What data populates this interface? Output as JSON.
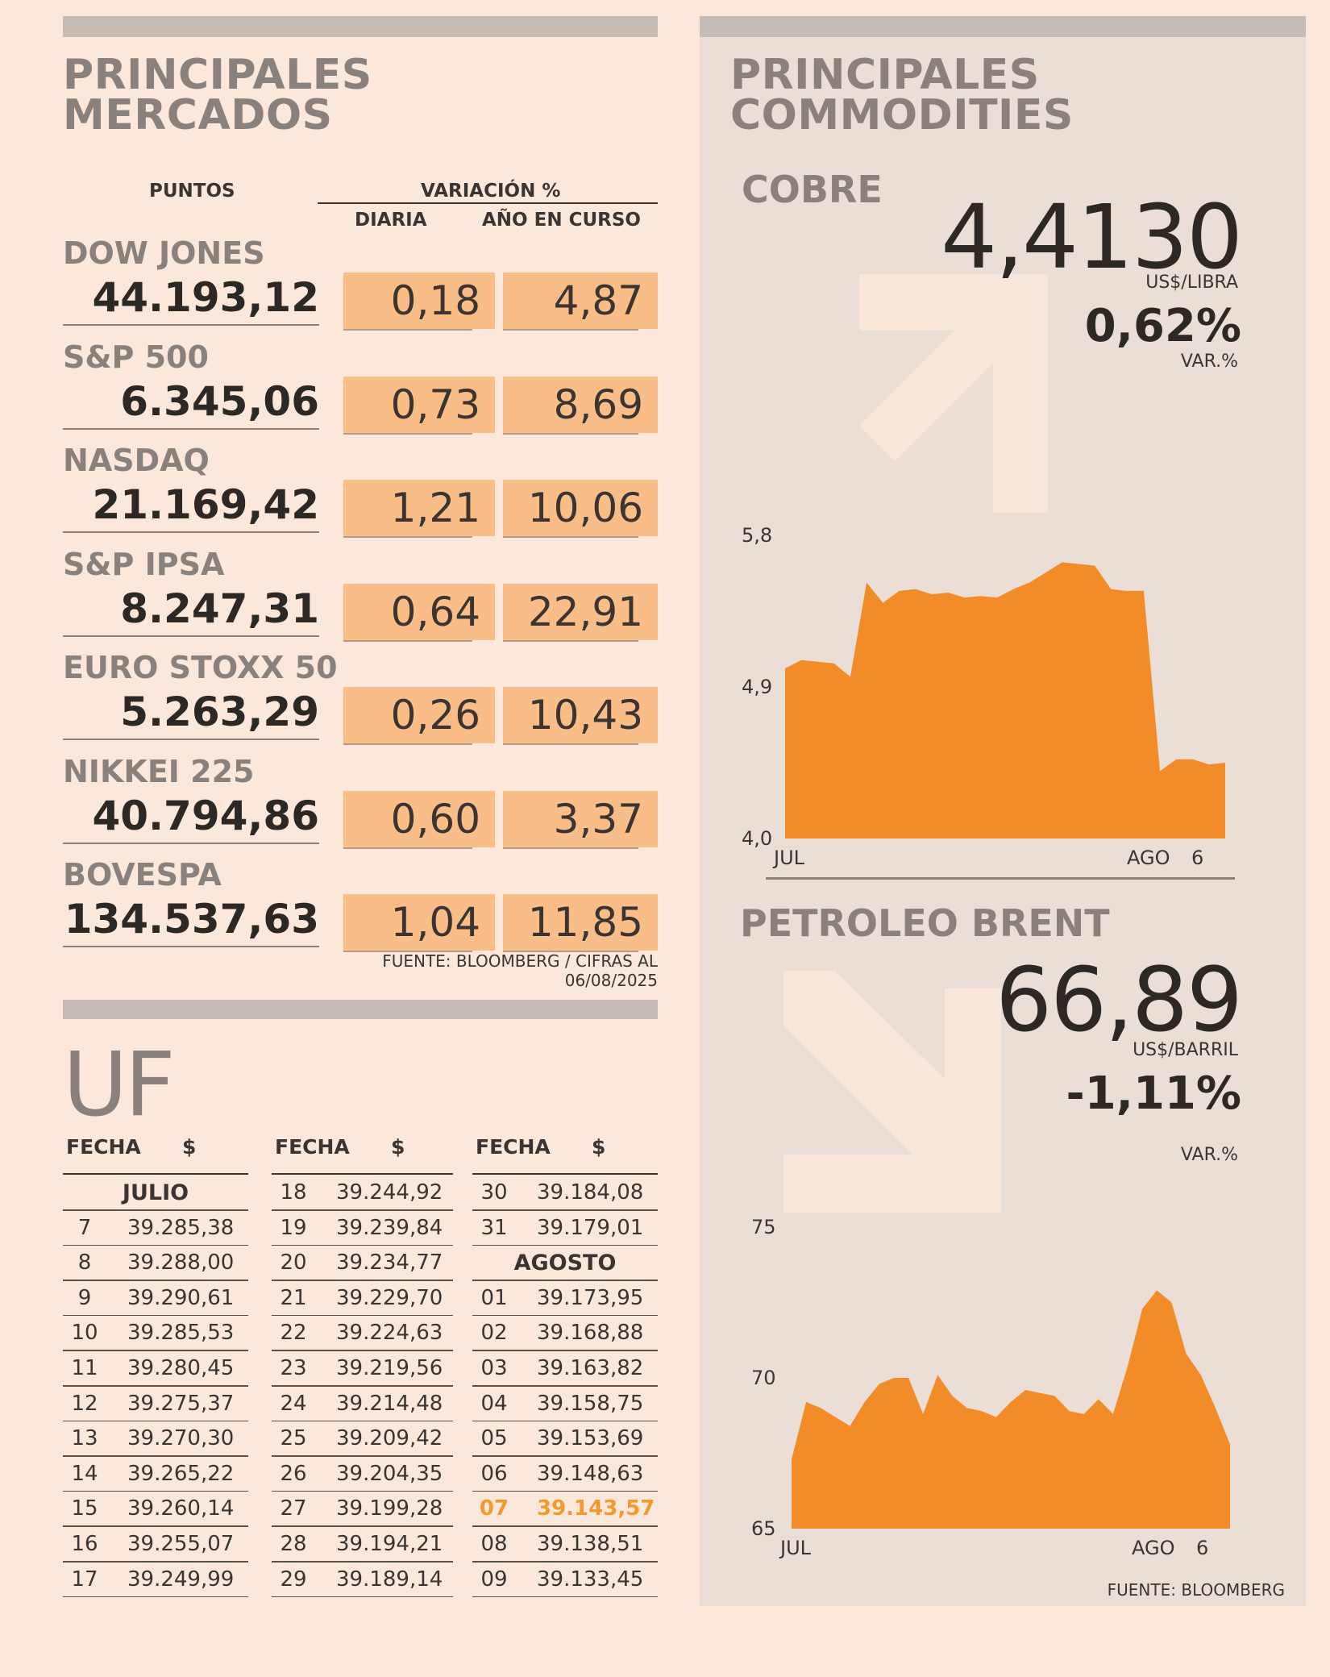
{
  "markets": {
    "title_line1": "PRINCIPALES",
    "title_line2": "MERCADOS",
    "col_points": "PUNTOS",
    "col_variation": "VARIACIÓN %",
    "col_daily": "DIARIA",
    "col_ytd": "AÑO EN CURSO",
    "source": "FUENTE: BLOOMBERG  / CIFRAS AL 06/08/2025",
    "rows": [
      {
        "name": "DOW JONES",
        "points": "44.193,12",
        "daily": "0,18",
        "ytd": "4,87"
      },
      {
        "name": "S&P 500",
        "points": "6.345,06",
        "daily": "0,73",
        "ytd": "8,69"
      },
      {
        "name": "NASDAQ",
        "points": "21.169,42",
        "daily": "1,21",
        "ytd": "10,06"
      },
      {
        "name": "S&P IPSA",
        "points": "8.247,31",
        "daily": "0,64",
        "ytd": "22,91"
      },
      {
        "name": "EURO STOXX 50",
        "points": "5.263,29",
        "daily": "0,26",
        "ytd": "10,43"
      },
      {
        "name": "NIKKEI 225",
        "points": "40.794,86",
        "daily": "0,60",
        "ytd": "3,37"
      },
      {
        "name": "BOVESPA",
        "points": "134.537,63",
        "daily": "1,04",
        "ytd": "11,85"
      }
    ]
  },
  "uf": {
    "title": "UF",
    "col_date": "FECHA",
    "col_value": "$",
    "month_july": "JULIO",
    "month_august": "AGOSTO",
    "col1": [
      {
        "d": "7",
        "v": "39.285,38"
      },
      {
        "d": "8",
        "v": "39.288,00"
      },
      {
        "d": "9",
        "v": "39.290,61"
      },
      {
        "d": "10",
        "v": "39.285,53"
      },
      {
        "d": "11",
        "v": "39.280,45"
      },
      {
        "d": "12",
        "v": "39.275,37"
      },
      {
        "d": "13",
        "v": "39.270,30"
      },
      {
        "d": "14",
        "v": "39.265,22"
      },
      {
        "d": "15",
        "v": "39.260,14"
      },
      {
        "d": "16",
        "v": "39.255,07"
      },
      {
        "d": "17",
        "v": "39.249,99"
      }
    ],
    "col2": [
      {
        "d": "18",
        "v": "39.244,92"
      },
      {
        "d": "19",
        "v": "39.239,84"
      },
      {
        "d": "20",
        "v": "39.234,77"
      },
      {
        "d": "21",
        "v": "39.229,70"
      },
      {
        "d": "22",
        "v": "39.224,63"
      },
      {
        "d": "23",
        "v": "39.219,56"
      },
      {
        "d": "24",
        "v": "39.214,48"
      },
      {
        "d": "25",
        "v": "39.209,42"
      },
      {
        "d": "26",
        "v": "39.204,35"
      },
      {
        "d": "27",
        "v": "39.199,28"
      },
      {
        "d": "28",
        "v": "39.194,21"
      },
      {
        "d": "29",
        "v": "39.189,14"
      }
    ],
    "col3a": [
      {
        "d": "30",
        "v": "39.184,08"
      },
      {
        "d": "31",
        "v": "39.179,01"
      }
    ],
    "col3b": [
      {
        "d": "01",
        "v": "39.173,95"
      },
      {
        "d": "02",
        "v": "39.168,88"
      },
      {
        "d": "03",
        "v": "39.163,82"
      },
      {
        "d": "04",
        "v": "39.158,75"
      },
      {
        "d": "05",
        "v": "39.153,69"
      },
      {
        "d": "06",
        "v": "39.148,63"
      },
      {
        "d": "07",
        "v": "39.143,57",
        "highlight": true
      },
      {
        "d": "08",
        "v": "39.138,51"
      },
      {
        "d": "09",
        "v": "39.133,45"
      }
    ]
  },
  "commodities": {
    "title_line1": "PRINCIPALES",
    "title_line2": "COMMODITIES",
    "source": "FUENTE: BLOOMBERG",
    "copper": {
      "name": "COBRE",
      "price": "4,4130",
      "unit": "US$/LIBRA",
      "change": "0,62%",
      "change_label": "VAR.%",
      "trend": "up"
    },
    "brent": {
      "name": "PETROLEO BRENT",
      "price": "66,89",
      "unit": "US$/BARRIL",
      "change": "-1,11%",
      "change_label": "VAR.%",
      "trend": "down"
    }
  },
  "accent_color": "#f28c28",
  "cell_color": "#f9bd87",
  "chart_data": [
    {
      "type": "area",
      "series": [
        {
          "values": [
            5.01,
            5.06,
            5.05,
            5.04,
            4.96,
            5.52,
            5.4,
            5.47,
            5.48,
            5.45,
            5.46,
            5.43,
            5.44,
            5.43,
            5.48,
            5.52,
            5.58,
            5.64,
            5.63,
            5.62,
            5.48,
            5.47,
            5.47,
            4.4,
            4.47,
            4.47,
            4.44,
            4.45
          ]
        }
      ],
      "x_tick_labels": [
        "JUL",
        "AGO",
        "6"
      ],
      "y_tick_labels": [
        "5,8",
        "4,9",
        "4,0"
      ],
      "ylim": [
        4.0,
        5.8
      ],
      "grid": false
    },
    {
      "type": "area",
      "series": [
        {
          "values": [
            67.3,
            69.2,
            69.0,
            68.7,
            68.4,
            69.2,
            69.8,
            70.0,
            70.0,
            68.8,
            70.1,
            69.4,
            69.0,
            68.9,
            68.7,
            69.2,
            69.6,
            69.5,
            69.4,
            68.9,
            68.8,
            69.3,
            68.8,
            70.4,
            72.3,
            72.9,
            72.5,
            70.8,
            70.1,
            69.0,
            67.8
          ]
        }
      ],
      "x_tick_labels": [
        "JUL",
        "AGO",
        "6"
      ],
      "y_tick_labels": [
        "75",
        "70",
        "65"
      ],
      "ylim": [
        65,
        75
      ],
      "grid": false
    }
  ]
}
